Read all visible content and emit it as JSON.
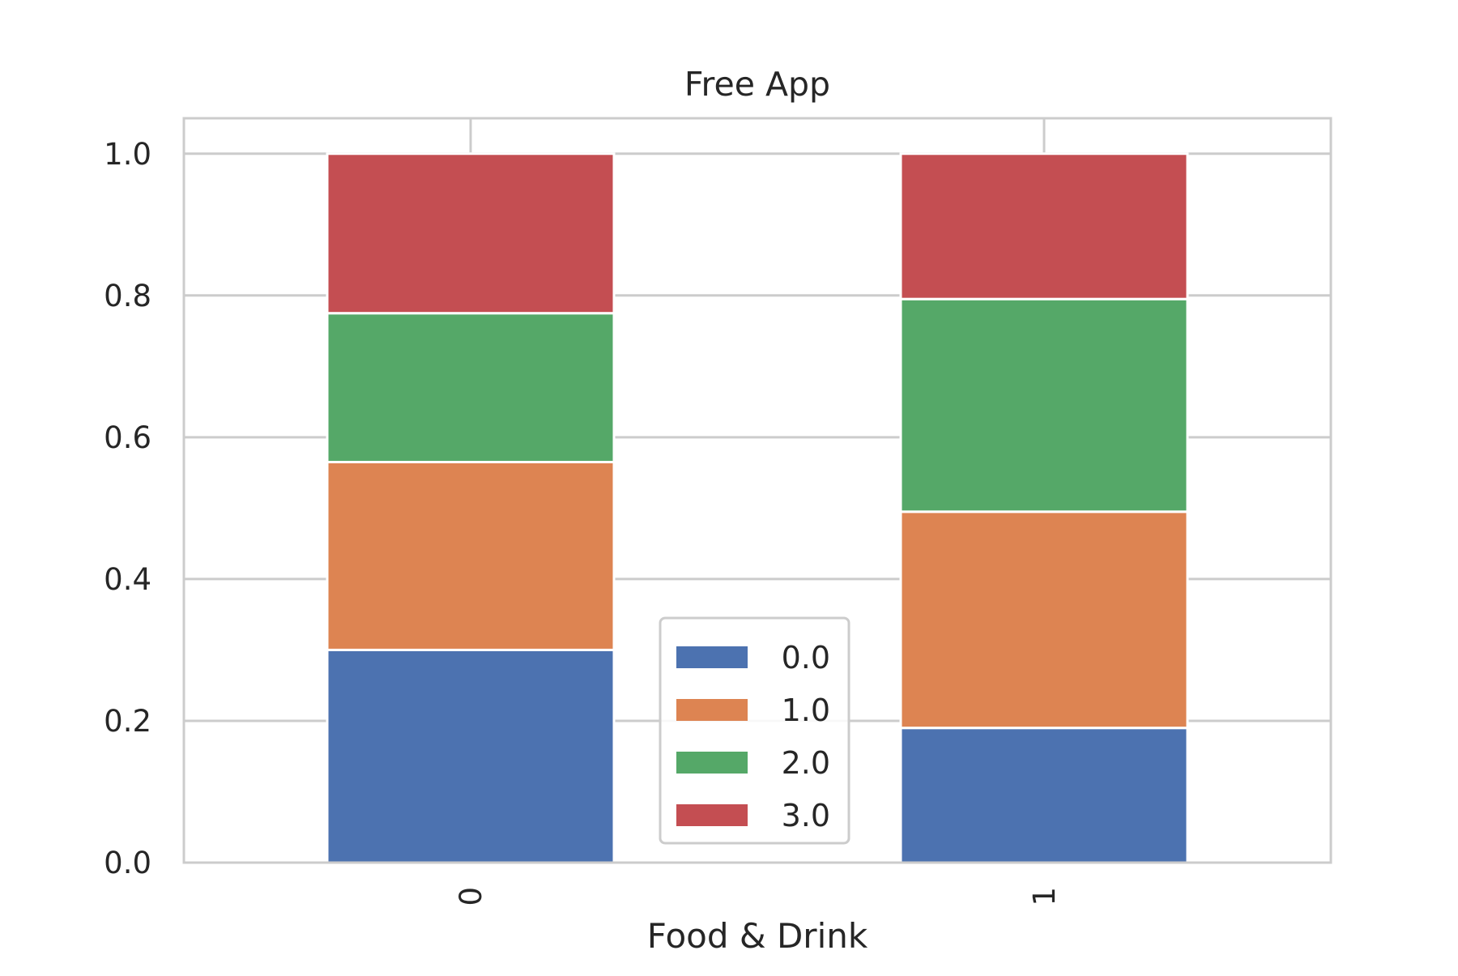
{
  "chart_data": {
    "type": "bar",
    "stacked": true,
    "title": "Free App",
    "xlabel": "Food & Drink",
    "ylabel": "",
    "categories": [
      "0",
      "1"
    ],
    "ylim": [
      0.0,
      1.05
    ],
    "yticks": [
      "0.0",
      "0.2",
      "0.4",
      "0.6",
      "0.8",
      "1.0"
    ],
    "grid": true,
    "legend_position": "lower center",
    "series": [
      {
        "name": "0.0",
        "values": [
          0.3,
          0.19
        ],
        "color": "#4C72B0"
      },
      {
        "name": "1.0",
        "values": [
          0.265,
          0.305
        ],
        "color": "#DD8452"
      },
      {
        "name": "2.0",
        "values": [
          0.21,
          0.3
        ],
        "color": "#55A868"
      },
      {
        "name": "3.0",
        "values": [
          0.225,
          0.205
        ],
        "color": "#C44E52"
      }
    ]
  }
}
